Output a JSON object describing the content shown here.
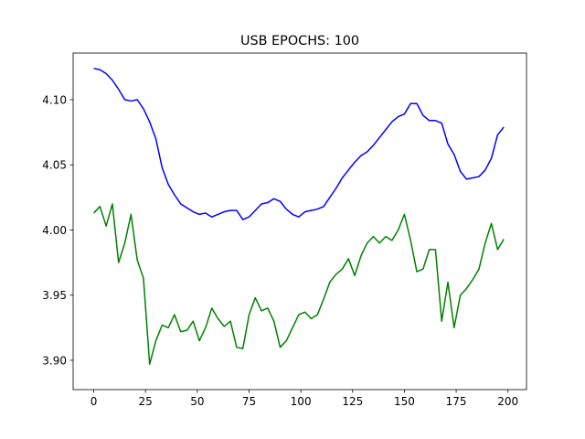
{
  "chart_data": {
    "type": "line",
    "title": "USB EPOCHS: 100",
    "x": [
      0,
      3,
      6,
      9,
      12,
      15,
      18,
      21,
      24,
      27,
      30,
      33,
      36,
      39,
      42,
      45,
      48,
      51,
      54,
      57,
      60,
      63,
      66,
      69,
      72,
      75,
      78,
      81,
      84,
      87,
      90,
      93,
      96,
      99,
      102,
      105,
      108,
      111,
      114,
      117,
      120,
      123,
      126,
      129,
      132,
      135,
      138,
      141,
      144,
      147,
      150,
      153,
      156,
      159,
      162,
      165,
      168,
      171,
      174,
      177,
      180,
      183,
      186,
      189,
      192,
      195,
      198
    ],
    "series": [
      {
        "color": "#0000ff",
        "values": [
          4.124,
          4.123,
          4.12,
          4.115,
          4.108,
          4.1,
          4.099,
          4.1,
          4.093,
          4.083,
          4.07,
          4.048,
          4.035,
          4.027,
          4.02,
          4.017,
          4.014,
          4.012,
          4.013,
          4.01,
          4.012,
          4.014,
          4.015,
          4.015,
          4.008,
          4.01,
          4.015,
          4.02,
          4.021,
          4.024,
          4.022,
          4.016,
          4.012,
          4.01,
          4.014,
          4.015,
          4.016,
          4.018,
          4.025,
          4.032,
          4.04,
          4.046,
          4.052,
          4.057,
          4.06,
          4.065,
          4.071,
          4.077,
          4.083,
          4.087,
          4.089,
          4.097,
          4.097,
          4.088,
          4.084,
          4.084,
          4.082,
          4.066,
          4.058,
          4.045,
          4.039,
          4.04,
          4.041,
          4.046,
          4.055,
          4.073,
          4.079
        ]
      },
      {
        "color": "#008000",
        "values": [
          4.013,
          4.018,
          4.003,
          4.02,
          3.975,
          3.99,
          4.012,
          3.977,
          3.963,
          3.897,
          3.915,
          3.927,
          3.925,
          3.935,
          3.922,
          3.923,
          3.93,
          3.915,
          3.925,
          3.94,
          3.932,
          3.926,
          3.93,
          3.91,
          3.909,
          3.935,
          3.948,
          3.938,
          3.94,
          3.93,
          3.91,
          3.915,
          3.925,
          3.935,
          3.937,
          3.932,
          3.935,
          3.947,
          3.96,
          3.966,
          3.97,
          3.978,
          3.965,
          3.98,
          3.99,
          3.995,
          3.99,
          3.995,
          3.992,
          4.0,
          4.012,
          3.992,
          3.968,
          3.97,
          3.985,
          3.985,
          3.93,
          3.96,
          3.925,
          3.95,
          3.955,
          3.962,
          3.97,
          3.99,
          4.005,
          3.985,
          3.993
        ]
      }
    ],
    "xlim": [
      -9.95,
      208.95
    ],
    "xticks": [
      0,
      25,
      50,
      75,
      100,
      125,
      150,
      175,
      200
    ],
    "ylim": [
      3.8775,
      4.1358
    ],
    "yticks": [
      {
        "value": 3.9,
        "label": "3.90"
      },
      {
        "value": 3.95,
        "label": "3.95"
      },
      {
        "value": 4.0,
        "label": "4.00"
      },
      {
        "value": 4.05,
        "label": "4.05"
      },
      {
        "value": 4.1,
        "label": "4.10"
      }
    ]
  }
}
